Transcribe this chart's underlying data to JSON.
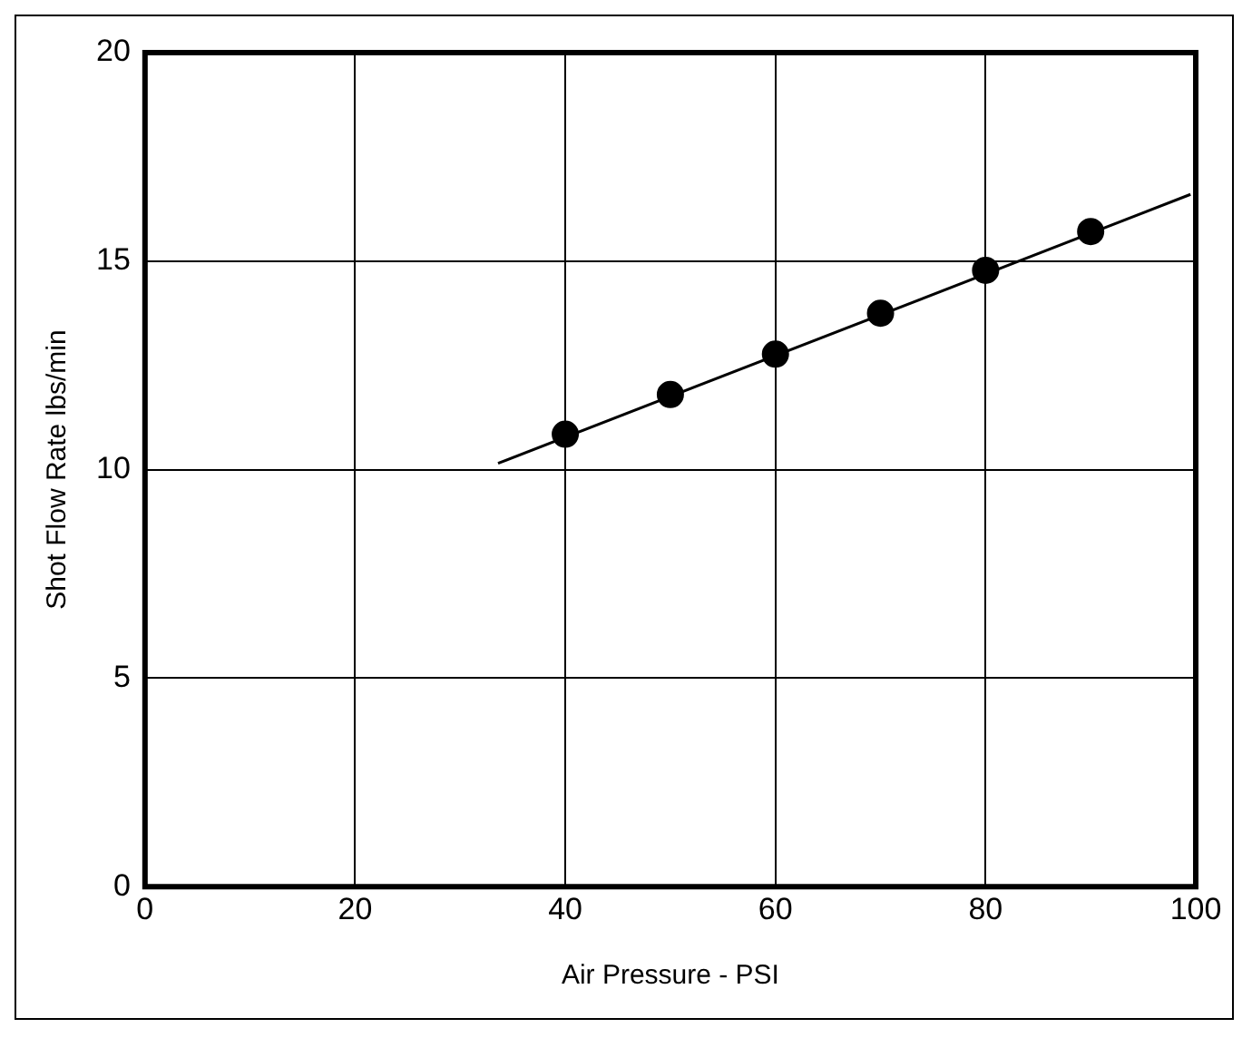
{
  "chart_data": {
    "type": "scatter",
    "xlabel": "Air Pressure - PSI",
    "ylabel": "Shot Flow Rate lbs/min",
    "xlim": [
      0,
      100
    ],
    "xticks": [
      0,
      20,
      40,
      60,
      80,
      100
    ],
    "ylim": [
      0,
      20
    ],
    "yticks": [
      0,
      5,
      10,
      15,
      20
    ],
    "grid": true,
    "legend": false,
    "series": [
      {
        "marker": "circle",
        "color": "#000000",
        "x": [
          40,
          50,
          60,
          70,
          80,
          90
        ],
        "values": [
          10.85,
          11.8,
          12.77,
          13.75,
          14.78,
          15.71
        ]
      },
      {
        "type": "line",
        "color": "#000000",
        "x": [
          33.6,
          99.5
        ],
        "values": [
          10.15,
          16.6
        ]
      }
    ]
  }
}
